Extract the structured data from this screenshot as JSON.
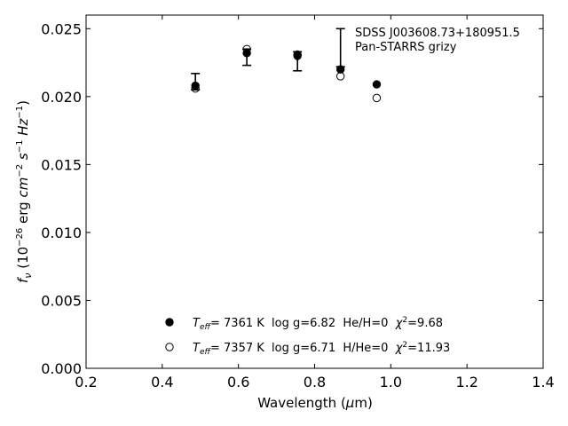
{
  "chart_data": {
    "type": "scatter",
    "xlabel": "Wavelength (μm)",
    "ylabel": "f_ν (10^-26 erg cm^-2 s^-1 Hz^-1)",
    "xlim": [
      0.2,
      1.4
    ],
    "ylim": [
      0.0,
      0.026
    ],
    "xticks": [
      0.2,
      0.4,
      0.6,
      0.8,
      1.0,
      1.2,
      1.4
    ],
    "xtick_labels": [
      "0.2",
      "0.4",
      "0.6",
      "0.8",
      "1.0",
      "1.2",
      "1.4"
    ],
    "yticks": [
      0.0,
      0.005,
      0.01,
      0.015,
      0.02,
      0.025
    ],
    "ytick_labels": [
      "0.000",
      "0.005",
      "0.010",
      "0.015",
      "0.020",
      "0.025"
    ],
    "grid": false,
    "annotation": [
      "SDSS J003608.73+180951.5",
      "Pan-STARRS grizy"
    ],
    "observed": {
      "x": [
        0.487,
        0.622,
        0.755,
        0.868,
        0.963
      ],
      "y": [
        0.0211,
        0.0229,
        0.0226,
        0.0236,
        null
      ],
      "yerr": [
        0.0006,
        0.0006,
        0.0007,
        0.0014,
        null
      ]
    },
    "series": [
      {
        "name": "T_eff= 7361 K log g=6.82 He/H=0 χ2=9.68",
        "marker": "filled-circle",
        "x": [
          0.487,
          0.622,
          0.755,
          0.868,
          0.963
        ],
        "y": [
          0.0208,
          0.0232,
          0.023,
          0.022,
          0.0209
        ]
      },
      {
        "name": "T_eff= 7357 K log g=6.71 H/He=0 χ2=11.93",
        "marker": "open-circle",
        "x": [
          0.487,
          0.622,
          0.755,
          0.868,
          0.963
        ],
        "y": [
          0.0206,
          0.0235,
          0.0231,
          0.0215,
          0.0199
        ]
      }
    ],
    "legend_placement": "lower-center"
  },
  "legend": [
    {
      "teff_value": "7361",
      "rest": " K  log g=6.82  He/H=0  ",
      "chi": "=9.68"
    },
    {
      "teff_value": "7357",
      "rest": " K  log g=6.71  H/He=0  ",
      "chi": "=11.93"
    }
  ]
}
